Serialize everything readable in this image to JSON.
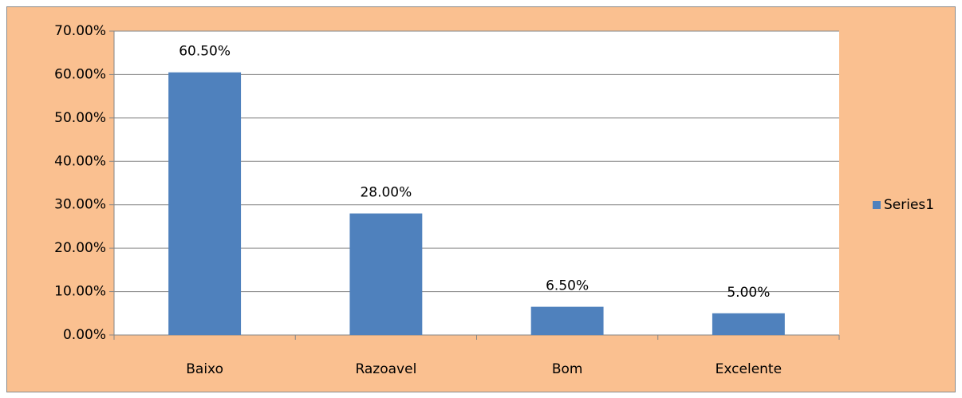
{
  "chart_data": {
    "type": "bar",
    "categories": [
      "Baixo",
      "Razoavel",
      "Bom",
      "Excelente"
    ],
    "series": [
      {
        "name": "Series1",
        "color": "#4f81bd",
        "values": [
          60.5,
          28,
          6.5,
          5
        ],
        "value_labels": [
          "60.50%",
          "28.00%",
          "6.50%",
          "5.00%"
        ]
      }
    ],
    "ylim": [
      0,
      70
    ],
    "yticks": [
      {
        "value": 0,
        "label": "0.00%"
      },
      {
        "value": 10,
        "label": "10.00%"
      },
      {
        "value": 20,
        "label": "20.00%"
      },
      {
        "value": 30,
        "label": "30.00%"
      },
      {
        "value": 40,
        "label": "40.00%"
      },
      {
        "value": 50,
        "label": "50.00%"
      },
      {
        "value": 60,
        "label": "60.00%"
      },
      {
        "value": 70,
        "label": "70.00%"
      }
    ],
    "grid": true,
    "legend": "right"
  }
}
